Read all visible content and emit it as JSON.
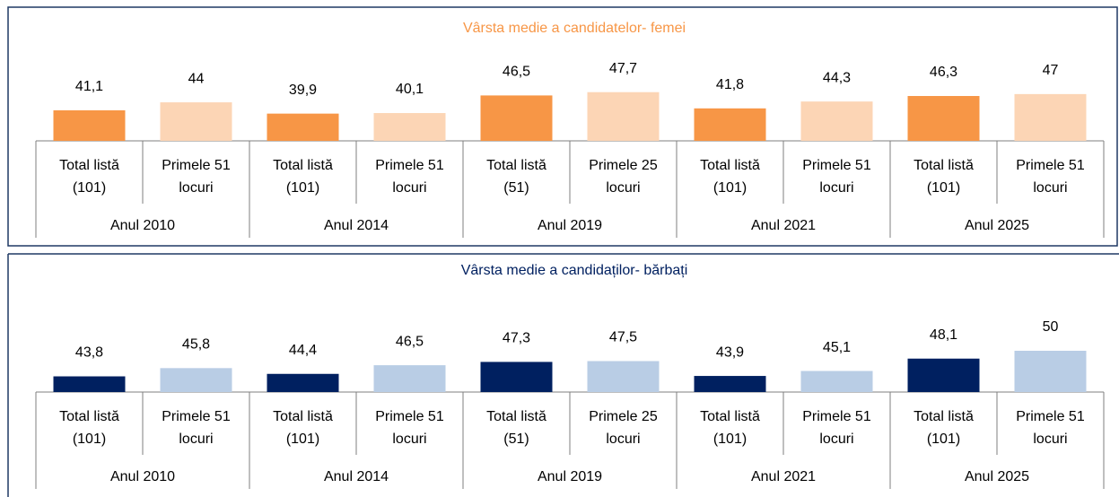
{
  "chart_data": [
    {
      "type": "bar",
      "title": "Vârsta medie a candidatelor- femei",
      "title_color": "#F79646",
      "categories": [
        [
          "Total listă",
          "(101)"
        ],
        [
          "Primele 51",
          "locuri"
        ],
        [
          "Total listă",
          "(101)"
        ],
        [
          "Primele 51",
          "locuri"
        ],
        [
          "Total listă",
          "(51)"
        ],
        [
          "Primele 25",
          "locuri"
        ],
        [
          "Total listă",
          "(101)"
        ],
        [
          "Primele 51",
          "locuri"
        ],
        [
          "Total listă",
          "(101)"
        ],
        [
          "Primele 51",
          "locuri"
        ]
      ],
      "groups": [
        "Anul 2010",
        "Anul 2014",
        "Anul 2019",
        "Anul 2021",
        "Anul 2025"
      ],
      "values": [
        41.1,
        44,
        39.9,
        40.1,
        46.5,
        47.7,
        41.8,
        44.3,
        46.3,
        47
      ],
      "value_labels": [
        "41,1",
        "44",
        "39,9",
        "40,1",
        "46,5",
        "47,7",
        "41,8",
        "44,3",
        "46,3",
        "47"
      ],
      "colors": [
        "#F79646",
        "#FCD5B5",
        "#F79646",
        "#FCD5B5",
        "#F79646",
        "#FCD5B5",
        "#F79646",
        "#FCD5B5",
        "#F79646",
        "#FCD5B5"
      ],
      "ylim": [
        30,
        60
      ]
    },
    {
      "type": "bar",
      "title": "Vârsta medie a candidaților- bărbați",
      "title_color": "#002060",
      "categories": [
        [
          "Total listă",
          "(101)"
        ],
        [
          "Primele 51",
          "locuri"
        ],
        [
          "Total listă",
          "(101)"
        ],
        [
          "Primele 51",
          "locuri"
        ],
        [
          "Total listă",
          "(51)"
        ],
        [
          "Primele 25",
          "locuri"
        ],
        [
          "Total listă",
          "(101)"
        ],
        [
          "Primele 51",
          "locuri"
        ],
        [
          "Total listă",
          "(101)"
        ],
        [
          "Primele 51",
          "locuri"
        ]
      ],
      "groups": [
        "Anul 2010",
        "Anul 2014",
        "Anul 2019",
        "Anul 2021",
        "Anul 2025"
      ],
      "values": [
        43.8,
        45.8,
        44.4,
        46.5,
        47.3,
        47.5,
        43.9,
        45.1,
        48.1,
        50
      ],
      "value_labels": [
        "43,8",
        "45,8",
        "44,4",
        "46,5",
        "47,3",
        "47,5",
        "43,9",
        "45,1",
        "48,1",
        "50"
      ],
      "colors": [
        "#002060",
        "#B9CDE5",
        "#002060",
        "#B9CDE5",
        "#002060",
        "#B9CDE5",
        "#002060",
        "#B9CDE5",
        "#002060",
        "#B9CDE5"
      ],
      "ylim": [
        40,
        60
      ]
    }
  ]
}
